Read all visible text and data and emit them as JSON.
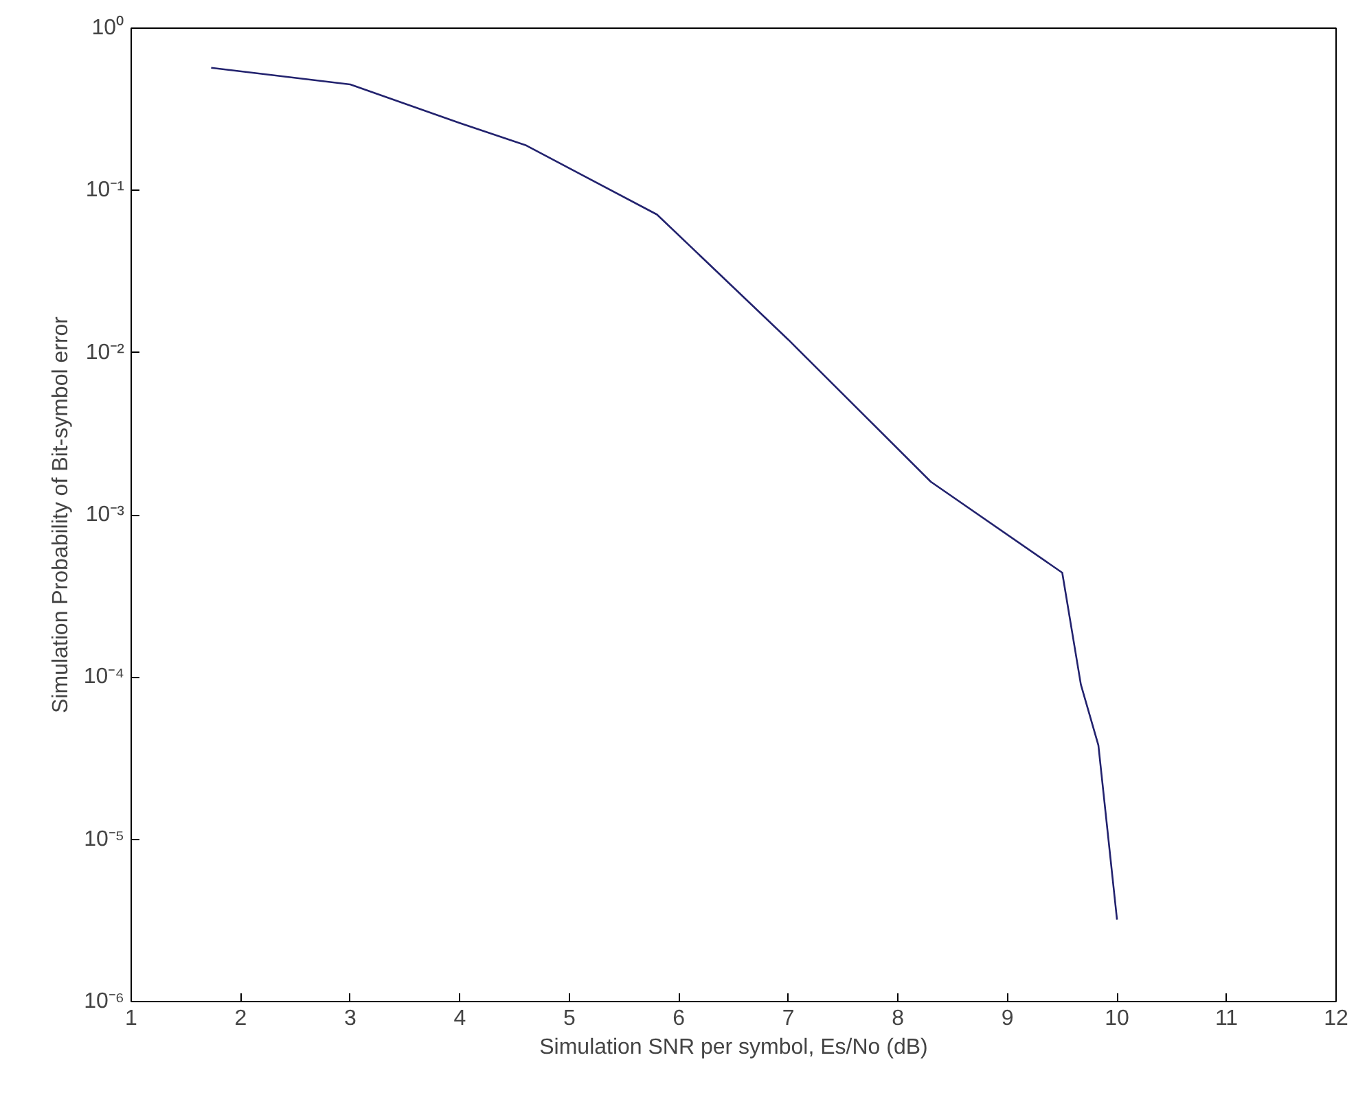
{
  "chart_data": {
    "type": "line",
    "xlabel": "Simulation SNR per symbol, Es/No (dB)",
    "ylabel": "Simulation Probability of Bit-symbol error",
    "log": "y",
    "grid": false,
    "line_style": "solid",
    "marker": "none",
    "xlim": [
      1,
      12
    ],
    "xticks": [
      1,
      2,
      3,
      4,
      5,
      6,
      7,
      8,
      9,
      10,
      11,
      12
    ],
    "ylim": [
      1e-06,
      1
    ],
    "yticks": [
      {
        "value": 1e-06,
        "label": "10⁻⁶"
      },
      {
        "value": 1e-05,
        "label": "10⁻⁵"
      },
      {
        "value": 0.0001,
        "label": "10⁻⁴"
      },
      {
        "value": 0.001,
        "label": "10⁻³"
      },
      {
        "value": 0.01,
        "label": "10⁻²"
      },
      {
        "value": 0.1,
        "label": "10⁻¹"
      },
      {
        "value": 1,
        "label": "10⁰"
      }
    ],
    "series": [
      {
        "color": "#22226e",
        "x": [
          1.73,
          3,
          4,
          4.6,
          5.8,
          7,
          8.3,
          9.5,
          9.67,
          9.83,
          10
        ],
        "values": [
          0.57,
          0.45,
          0.26,
          0.19,
          0.071,
          0.012,
          0.0016,
          0.00044,
          9e-05,
          3.8e-05,
          3.2e-06
        ]
      }
    ]
  }
}
